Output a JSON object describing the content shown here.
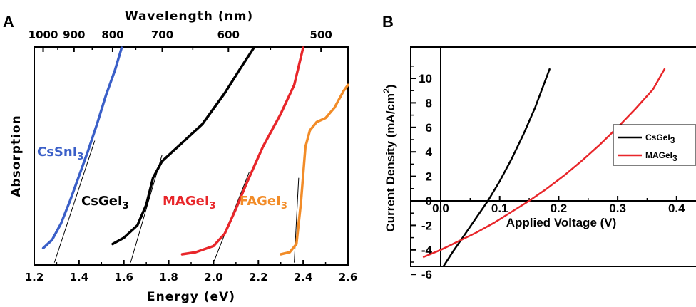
{
  "colors": {
    "CsSnI3": "#3a5fc8",
    "CsGeI3": "#000000",
    "MAGeI3": "#e8262a",
    "FAGeI3": "#f28c28"
  },
  "chart_data": [
    {
      "panel": "A",
      "type": "line",
      "xlabel": "Energy (eV)",
      "ylabel": "Absorption",
      "top_axis_label": "Wavelength (nm)",
      "xlim": [
        1.2,
        2.6
      ],
      "x_ticks": [
        "1.2",
        "1.4",
        "1.6",
        "1.8",
        "2.0",
        "2.2",
        "2.4",
        "2.6"
      ],
      "top_ticks": [
        "1000",
        "900",
        "800",
        "700",
        "600",
        "500"
      ],
      "series": [
        {
          "name": "CsSnI3",
          "label_main": "CsSnI",
          "label_sub": "3",
          "points": [
            [
              1.24,
              0.03
            ],
            [
              1.28,
              0.07
            ],
            [
              1.32,
              0.15
            ],
            [
              1.36,
              0.26
            ],
            [
              1.4,
              0.38
            ],
            [
              1.44,
              0.5
            ],
            [
              1.48,
              0.63
            ],
            [
              1.52,
              0.77
            ],
            [
              1.56,
              0.89
            ],
            [
              1.59,
              1.0
            ]
          ],
          "tangent": [
            [
              1.29,
              -0.04
            ],
            [
              1.47,
              0.55
            ]
          ]
        },
        {
          "name": "CsGeI3",
          "label_main": "CsGeI",
          "label_sub": "3",
          "points": [
            [
              1.55,
              0.05
            ],
            [
              1.6,
              0.08
            ],
            [
              1.66,
              0.14
            ],
            [
              1.7,
              0.24
            ],
            [
              1.73,
              0.37
            ],
            [
              1.77,
              0.45
            ],
            [
              1.85,
              0.53
            ],
            [
              1.95,
              0.63
            ],
            [
              2.05,
              0.78
            ],
            [
              2.12,
              0.9
            ],
            [
              2.18,
              1.0
            ]
          ],
          "tangent": [
            [
              1.63,
              -0.04
            ],
            [
              1.77,
              0.48
            ]
          ]
        },
        {
          "name": "MAGeI3",
          "label_main": "MAGeI",
          "label_sub": "3",
          "points": [
            [
              1.86,
              0.0
            ],
            [
              1.92,
              0.01
            ],
            [
              2.0,
              0.04
            ],
            [
              2.05,
              0.1
            ],
            [
              2.1,
              0.22
            ],
            [
              2.15,
              0.35
            ],
            [
              2.22,
              0.52
            ],
            [
              2.3,
              0.68
            ],
            [
              2.36,
              0.82
            ],
            [
              2.4,
              1.0
            ]
          ],
          "tangent": [
            [
              2.0,
              -0.04
            ],
            [
              2.16,
              0.4
            ]
          ]
        },
        {
          "name": "FAGeI3",
          "label_main": "FAGeI",
          "label_sub": "3",
          "points": [
            [
              2.3,
              0.0
            ],
            [
              2.34,
              0.01
            ],
            [
              2.37,
              0.05
            ],
            [
              2.39,
              0.25
            ],
            [
              2.41,
              0.52
            ],
            [
              2.43,
              0.6
            ],
            [
              2.46,
              0.64
            ],
            [
              2.5,
              0.66
            ],
            [
              2.54,
              0.71
            ],
            [
              2.58,
              0.79
            ],
            [
              2.6,
              0.82
            ]
          ],
          "tangent": [
            [
              2.36,
              -0.04
            ],
            [
              2.38,
              0.37
            ]
          ]
        }
      ]
    },
    {
      "panel": "B",
      "type": "line",
      "xlabel": "Applied Voltage (V)",
      "ylabel_main": "Current Density (mA/cm",
      "ylabel_sup": "2",
      "ylabel_end": ")",
      "xlim": [
        -0.03,
        0.42
      ],
      "ylim": [
        -7,
        10.8
      ],
      "x_ticks": [
        "0.0",
        "0.1",
        "0.2",
        "0.3",
        "0.4"
      ],
      "y_ticks": [
        "10",
        "8",
        "6",
        "4",
        "2",
        "0",
        "-2",
        "-4",
        "-6"
      ],
      "legend": "right",
      "series": [
        {
          "name": "CsGeI3",
          "label_main": "CsGeI",
          "label_sub": "3",
          "points": [
            [
              -0.015,
              -7.0
            ],
            [
              0.0,
              -5.7
            ],
            [
              0.02,
              -4.2
            ],
            [
              0.04,
              -2.8
            ],
            [
              0.06,
              -1.4
            ],
            [
              0.08,
              0.0
            ],
            [
              0.1,
              1.6
            ],
            [
              0.12,
              3.4
            ],
            [
              0.14,
              5.4
            ],
            [
              0.16,
              7.6
            ],
            [
              0.185,
              10.8
            ]
          ]
        },
        {
          "name": "MAGeI3",
          "label_main": "MAGeI",
          "label_sub": "3",
          "points": [
            [
              -0.03,
              -4.6
            ],
            [
              0.0,
              -4.0
            ],
            [
              0.03,
              -3.3
            ],
            [
              0.06,
              -2.6
            ],
            [
              0.09,
              -1.8
            ],
            [
              0.12,
              -0.9
            ],
            [
              0.15,
              0.0
            ],
            [
              0.18,
              1.0
            ],
            [
              0.21,
              2.1
            ],
            [
              0.24,
              3.3
            ],
            [
              0.27,
              4.6
            ],
            [
              0.3,
              6.0
            ],
            [
              0.33,
              7.5
            ],
            [
              0.36,
              9.1
            ],
            [
              0.38,
              10.8
            ]
          ]
        }
      ]
    }
  ]
}
